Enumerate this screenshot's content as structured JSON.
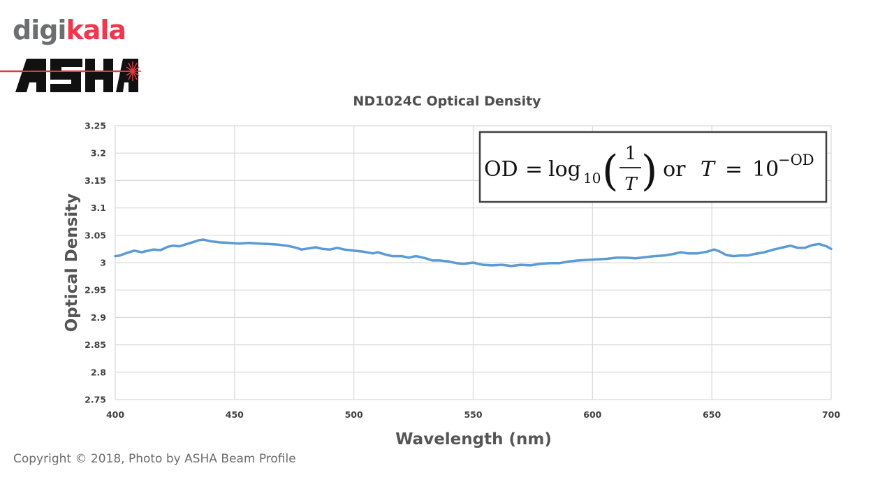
{
  "branding": {
    "digikala_part1": "digi",
    "digikala_part2": "kala",
    "digikala_colors": [
      "#6d6e71",
      "#ee384e"
    ],
    "asha_logo_text": "ASHA"
  },
  "copyright": "Copyright © 2018, Photo by ASHA Beam Profile",
  "formula": {
    "od": "OD",
    "equals": "=",
    "log": "log",
    "log_sub": "10",
    "frac_num": "1",
    "frac_den": "T",
    "or_text": ", or",
    "t": "T",
    "ten": "10",
    "exp": "−OD"
  },
  "chart_data": {
    "type": "line",
    "title": "ND1024C Optical Density",
    "xlabel": "Wavelength (nm)",
    "ylabel": "Optical Density",
    "xlim": [
      400,
      700
    ],
    "ylim": [
      2.75,
      3.25
    ],
    "x_ticks": [
      "400",
      "450",
      "500",
      "550",
      "600",
      "650",
      "700"
    ],
    "y_ticks": [
      "3.25",
      "3.2",
      "3.15",
      "3.1",
      "3.05",
      "3",
      "2.95",
      "2.9",
      "2.85",
      "2.8",
      "2.75"
    ],
    "grid": true,
    "line_color": "#5b9bd5",
    "series": [
      {
        "x": [
          400,
          402,
          405,
          408,
          411,
          413,
          416,
          419,
          422,
          424,
          427,
          430,
          433,
          435,
          437,
          440,
          444,
          448,
          452,
          456,
          460,
          464,
          468,
          472,
          476,
          478,
          481,
          484,
          487,
          490,
          493,
          496,
          500,
          504,
          508,
          510,
          513,
          516,
          520,
          523,
          526,
          530,
          533,
          536,
          540,
          543,
          546,
          550,
          554,
          558,
          562,
          566,
          570,
          574,
          578,
          582,
          586,
          590,
          594,
          598,
          602,
          606,
          610,
          614,
          618,
          622,
          626,
          630,
          634,
          637,
          640,
          644,
          648,
          651,
          653,
          656,
          659,
          662,
          665,
          668,
          672,
          676,
          680,
          683,
          686,
          689,
          692,
          695,
          698,
          700
        ],
        "values": [
          3.012,
          3.013,
          3.018,
          3.022,
          3.019,
          3.021,
          3.024,
          3.023,
          3.029,
          3.031,
          3.03,
          3.034,
          3.038,
          3.041,
          3.042,
          3.039,
          3.037,
          3.036,
          3.035,
          3.036,
          3.035,
          3.034,
          3.033,
          3.031,
          3.027,
          3.024,
          3.026,
          3.028,
          3.025,
          3.024,
          3.027,
          3.024,
          3.022,
          3.02,
          3.017,
          3.019,
          3.015,
          3.012,
          3.012,
          3.009,
          3.012,
          3.008,
          3.004,
          3.004,
          3.002,
          2.999,
          2.998,
          3.0,
          2.996,
          2.995,
          2.996,
          2.994,
          2.996,
          2.995,
          2.998,
          2.999,
          2.999,
          3.002,
          3.004,
          3.005,
          3.006,
          3.007,
          3.009,
          3.009,
          3.008,
          3.01,
          3.012,
          3.013,
          3.016,
          3.019,
          3.017,
          3.017,
          3.02,
          3.024,
          3.021,
          3.014,
          3.012,
          3.013,
          3.013,
          3.016,
          3.019,
          3.024,
          3.028,
          3.031,
          3.027,
          3.027,
          3.032,
          3.034,
          3.03,
          3.025
        ]
      }
    ]
  }
}
